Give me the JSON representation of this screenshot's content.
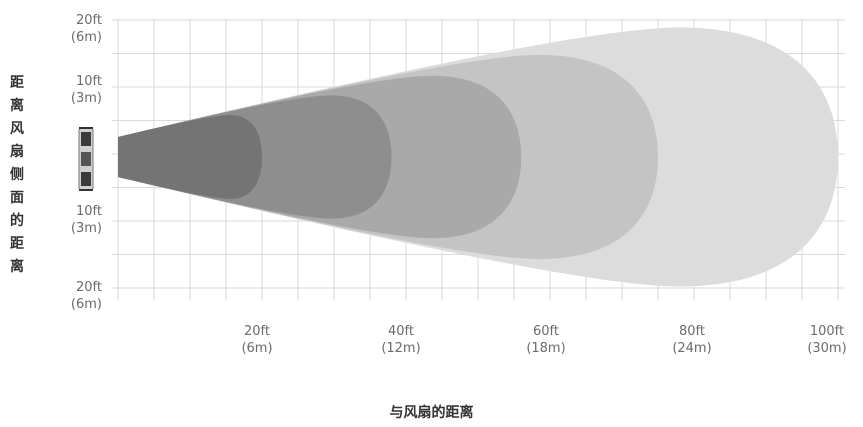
{
  "y_axis": {
    "title": "距离风扇侧面的距离",
    "ticks": [
      {
        "ft": "20ft",
        "m": "(6m)"
      },
      {
        "ft": "10ft",
        "m": "(3m)"
      },
      {
        "ft": "10ft",
        "m": "(3m)"
      },
      {
        "ft": "20ft",
        "m": "(6m)"
      }
    ]
  },
  "x_axis": {
    "title": "与风扇的距离",
    "ticks": [
      {
        "ft": "20ft",
        "m": "(6m)"
      },
      {
        "ft": "40ft",
        "m": "(12m)"
      },
      {
        "ft": "60ft",
        "m": "(18m)"
      },
      {
        "ft": "80ft",
        "m": "(24m)"
      },
      {
        "ft": "100ft",
        "m": "(30m)"
      }
    ]
  },
  "zones": [
    {
      "reach_ft": 100,
      "color": "#dcdcdc"
    },
    {
      "reach_ft": 75,
      "color": "#c4c4c4"
    },
    {
      "reach_ft": 56,
      "color": "#a9a9a9"
    },
    {
      "reach_ft": 38,
      "color": "#8e8e8e"
    },
    {
      "reach_ft": 20,
      "color": "#747474"
    }
  ],
  "colors": {
    "grid": "#d9d9d9",
    "fan": "#3a3a3a"
  }
}
